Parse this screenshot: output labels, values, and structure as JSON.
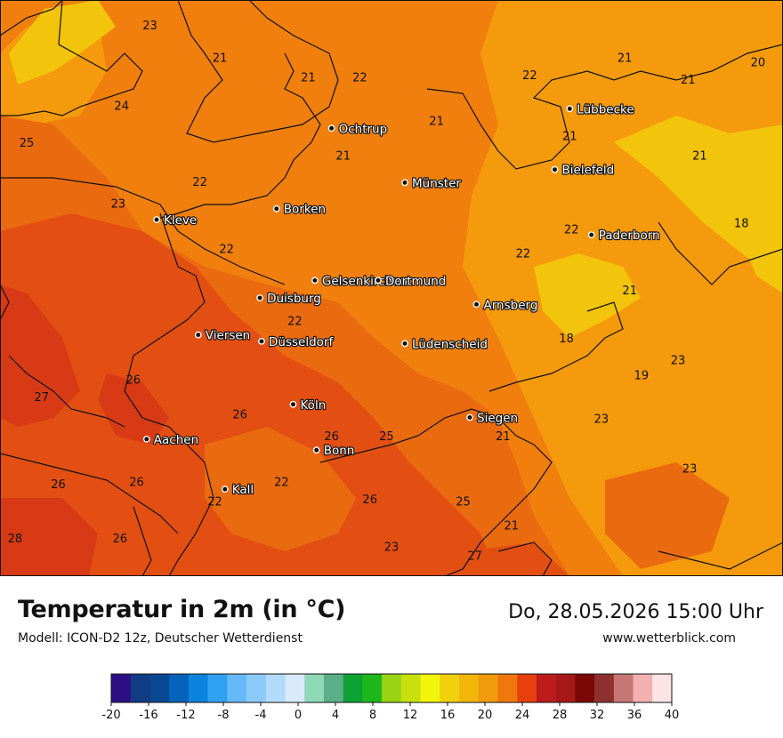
{
  "header": {
    "title": "Temperatur in 2m (in °C)",
    "model": "Modell: ICON-D2 12z, Deutscher Wetterdienst",
    "datetime": "Do, 28.05.2026 15:00 Uhr",
    "website": "www.wetterblick.com"
  },
  "colors": {
    "t18": "#f2a80b",
    "t20": "#f59a0c",
    "t22": "#f07f0e",
    "t24": "#ea6a10",
    "t26": "#e34f12",
    "t28": "#d73a14",
    "yellow": "#f3c40c",
    "border": "#111111"
  },
  "cities": [
    {
      "name": "Lübbecke",
      "lon": 8.62,
      "lat": 52.3
    },
    {
      "name": "Ochtrup",
      "lon": 7.19,
      "lat": 52.21
    },
    {
      "name": "Bielefeld",
      "lon": 8.53,
      "lat": 52.02
    },
    {
      "name": "Münster",
      "lon": 7.63,
      "lat": 51.96
    },
    {
      "name": "Borken",
      "lon": 6.86,
      "lat": 51.84
    },
    {
      "name": "Kleve",
      "lon": 6.14,
      "lat": 51.79
    },
    {
      "name": "Paderborn",
      "lon": 8.75,
      "lat": 51.72
    },
    {
      "name": "Gelsenkirchen",
      "lon": 7.09,
      "lat": 51.51
    },
    {
      "name": "Dortmund",
      "lon": 7.47,
      "lat": 51.51
    },
    {
      "name": "Duisburg",
      "lon": 6.76,
      "lat": 51.43
    },
    {
      "name": "Arnsberg",
      "lon": 8.06,
      "lat": 51.4
    },
    {
      "name": "Viersen",
      "lon": 6.39,
      "lat": 51.26
    },
    {
      "name": "Düsseldorf",
      "lon": 6.77,
      "lat": 51.23
    },
    {
      "name": "Lüdenscheid",
      "lon": 7.63,
      "lat": 51.22
    },
    {
      "name": "Köln",
      "lon": 6.96,
      "lat": 50.94
    },
    {
      "name": "Siegen",
      "lon": 8.02,
      "lat": 50.88
    },
    {
      "name": "Aachen",
      "lon": 6.08,
      "lat": 50.78
    },
    {
      "name": "Bonn",
      "lon": 7.1,
      "lat": 50.73
    },
    {
      "name": "Kall",
      "lon": 6.55,
      "lat": 50.55
    }
  ],
  "temperature_labels": [
    {
      "t": "23",
      "lon": 6.1,
      "lat": 52.68
    },
    {
      "t": "21",
      "lon": 6.52,
      "lat": 52.53
    },
    {
      "t": "21",
      "lon": 7.05,
      "lat": 52.44
    },
    {
      "t": "22",
      "lon": 7.36,
      "lat": 52.44
    },
    {
      "t": "22",
      "lon": 8.38,
      "lat": 52.45
    },
    {
      "t": "21",
      "lon": 8.95,
      "lat": 52.53
    },
    {
      "t": "20",
      "lon": 9.75,
      "lat": 52.51
    },
    {
      "t": "21",
      "lon": 9.33,
      "lat": 52.43
    },
    {
      "t": "24",
      "lon": 5.93,
      "lat": 52.31
    },
    {
      "t": "25",
      "lon": 5.36,
      "lat": 52.14
    },
    {
      "t": "21",
      "lon": 7.82,
      "lat": 52.24
    },
    {
      "t": "21",
      "lon": 8.62,
      "lat": 52.17
    },
    {
      "t": "21",
      "lon": 7.26,
      "lat": 52.08
    },
    {
      "t": "21",
      "lon": 9.4,
      "lat": 52.08
    },
    {
      "t": "22",
      "lon": 6.4,
      "lat": 51.96
    },
    {
      "t": "23",
      "lon": 5.91,
      "lat": 51.86
    },
    {
      "t": "18",
      "lon": 9.65,
      "lat": 51.77
    },
    {
      "t": "22",
      "lon": 8.63,
      "lat": 51.74
    },
    {
      "t": "22",
      "lon": 6.56,
      "lat": 51.65
    },
    {
      "t": "22",
      "lon": 8.34,
      "lat": 51.63
    },
    {
      "t": "21",
      "lon": 8.98,
      "lat": 51.46
    },
    {
      "t": "22",
      "lon": 6.97,
      "lat": 51.32
    },
    {
      "t": "18",
      "lon": 8.6,
      "lat": 51.24
    },
    {
      "t": "23",
      "lon": 9.27,
      "lat": 51.14
    },
    {
      "t": "19",
      "lon": 9.05,
      "lat": 51.07
    },
    {
      "t": "26",
      "lon": 6.0,
      "lat": 51.05
    },
    {
      "t": "27",
      "lon": 5.45,
      "lat": 50.97
    },
    {
      "t": "26",
      "lon": 6.64,
      "lat": 50.89
    },
    {
      "t": "23",
      "lon": 8.81,
      "lat": 50.87
    },
    {
      "t": "26",
      "lon": 7.19,
      "lat": 50.79
    },
    {
      "t": "25",
      "lon": 7.52,
      "lat": 50.79
    },
    {
      "t": "21",
      "lon": 8.22,
      "lat": 50.79
    },
    {
      "t": "23",
      "lon": 9.34,
      "lat": 50.64
    },
    {
      "t": "26",
      "lon": 5.55,
      "lat": 50.57
    },
    {
      "t": "26",
      "lon": 6.02,
      "lat": 50.58
    },
    {
      "t": "22",
      "lon": 6.89,
      "lat": 50.58
    },
    {
      "t": "22",
      "lon": 6.49,
      "lat": 50.49
    },
    {
      "t": "26",
      "lon": 7.42,
      "lat": 50.5
    },
    {
      "t": "25",
      "lon": 7.98,
      "lat": 50.49
    },
    {
      "t": "21",
      "lon": 8.27,
      "lat": 50.38
    },
    {
      "t": "28",
      "lon": 5.29,
      "lat": 50.32
    },
    {
      "t": "26",
      "lon": 5.92,
      "lat": 50.32
    },
    {
      "t": "23",
      "lon": 7.55,
      "lat": 50.28
    },
    {
      "t": "27",
      "lon": 8.05,
      "lat": 50.24
    }
  ],
  "legend": {
    "ticks": [
      "-20",
      "-16",
      "-12",
      "-8",
      "-4",
      "0",
      "4",
      "8",
      "12",
      "16",
      "20",
      "24",
      "28",
      "32",
      "36",
      "40"
    ],
    "colors": [
      "#2e0e84",
      "#123c84",
      "#084892",
      "#0762bc",
      "#0a84dc",
      "#2fa0f2",
      "#66b9f7",
      "#8ccbf9",
      "#b2dbfb",
      "#d8eafc",
      "#8fd8b8",
      "#5aae88",
      "#0ea234",
      "#1eb81c",
      "#98d411",
      "#c8e00d",
      "#f2f40b",
      "#f2d00b",
      "#f2b60b",
      "#f09a0c",
      "#ef780d",
      "#e7400f",
      "#bd1c1c",
      "#a71818",
      "#7c0808",
      "#8e3030",
      "#c77676",
      "#f3b0b0",
      "#fde4e4"
    ]
  }
}
